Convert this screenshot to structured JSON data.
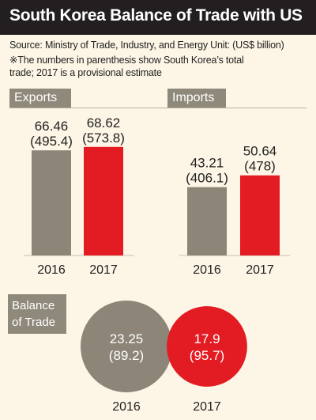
{
  "title": "South Korea Balance of Trade with US",
  "source": "Source: Ministry of Trade, Industry, and Energy Unit: (US$ billion)",
  "note_line1": "※The numbers in parenthesis show South Korea’s total",
  "note_line2": "trade; 2017 is a provisional estimate",
  "colors": {
    "y2016": "#8c8578",
    "y2017": "#e31b23",
    "background": "#fdf6e6",
    "title_bar": "#231f20",
    "tag": "#8f897c"
  },
  "chart_data": [
    {
      "type": "bar",
      "title": "Exports",
      "categories": [
        "2016",
        "2017"
      ],
      "values": [
        66.46,
        68.62
      ],
      "labels": [
        "66.46",
        "68.62"
      ],
      "totals": [
        "(495.4)",
        "(573.8)"
      ],
      "colors": [
        "#8c8578",
        "#e31b23"
      ]
    },
    {
      "type": "bar",
      "title": "Imports",
      "categories": [
        "2016",
        "2017"
      ],
      "values": [
        43.21,
        50.64
      ],
      "labels": [
        "43.21",
        "50.64"
      ],
      "totals": [
        "(406.1)",
        "(478)"
      ],
      "colors": [
        "#8c8578",
        "#e31b23"
      ]
    },
    {
      "type": "bubble",
      "title": "Balance of Trade",
      "title_lines": [
        "Balance",
        "of Trade"
      ],
      "categories": [
        "2016",
        "2017"
      ],
      "values": [
        23.25,
        17.9
      ],
      "labels": [
        "23.25",
        "17.9"
      ],
      "totals": [
        "(89.2)",
        "(95.7)"
      ],
      "colors": [
        "#8c8578",
        "#e31b23"
      ]
    }
  ]
}
